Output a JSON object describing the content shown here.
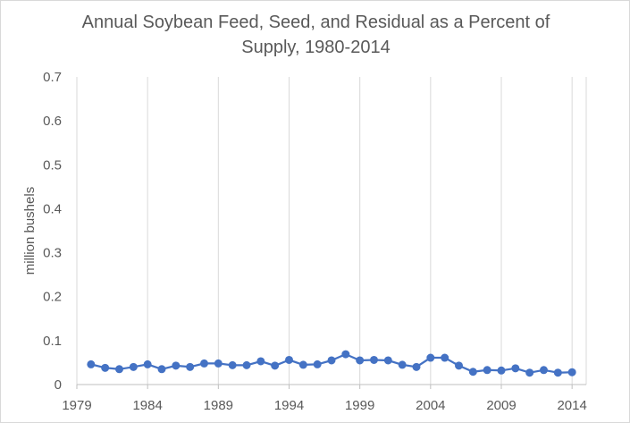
{
  "chart_data": {
    "type": "line",
    "title_lines": [
      "Annual Soybean Feed, Seed, and Residual as a Percent of",
      "Supply, 1980-2014"
    ],
    "xlabel": "",
    "ylabel": "million bushels",
    "xlim": [
      1979,
      2015
    ],
    "ylim": [
      0,
      0.7
    ],
    "x_ticks": [
      "1979",
      "1984",
      "1989",
      "1994",
      "1999",
      "2004",
      "2009",
      "2014"
    ],
    "y_ticks": [
      "0",
      "0.1",
      "0.2",
      "0.3",
      "0.4",
      "0.5",
      "0.6",
      "0.7"
    ],
    "grid": "vertical",
    "legend": "none",
    "color": "#4472c4",
    "x": [
      1980,
      1981,
      1982,
      1983,
      1984,
      1985,
      1986,
      1987,
      1988,
      1989,
      1990,
      1991,
      1992,
      1993,
      1994,
      1995,
      1996,
      1997,
      1998,
      1999,
      2000,
      2001,
      2002,
      2003,
      2004,
      2005,
      2006,
      2007,
      2008,
      2009,
      2010,
      2011,
      2012,
      2013,
      2014
    ],
    "values": [
      0.046,
      0.038,
      0.035,
      0.04,
      0.046,
      0.035,
      0.043,
      0.04,
      0.048,
      0.048,
      0.044,
      0.044,
      0.053,
      0.043,
      0.056,
      0.045,
      0.046,
      0.055,
      0.069,
      0.055,
      0.056,
      0.055,
      0.045,
      0.04,
      0.061,
      0.061,
      0.043,
      0.029,
      0.033,
      0.032,
      0.037,
      0.027,
      0.033,
      0.027,
      0.028
    ]
  }
}
